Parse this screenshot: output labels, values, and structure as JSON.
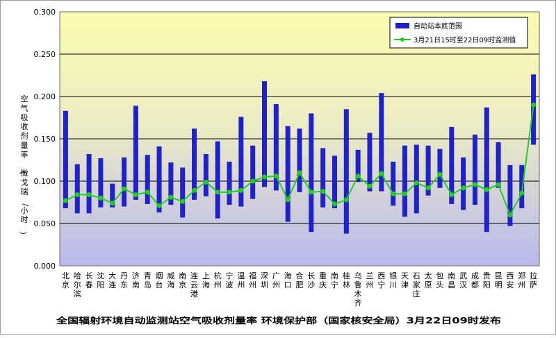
{
  "chart_data": {
    "type": "bar",
    "title": "全国辐射环境自动监测站空气吸收剂量率   环境保护部（国家核安全局）3月22日09时发布",
    "ylabel": "空气吸收剂量率（微戈瑞/小时）",
    "ylim": [
      0,
      0.3
    ],
    "yticks": [
      "0.000",
      "0.050",
      "0.100",
      "0.150",
      "0.200",
      "0.250",
      "0.300"
    ],
    "ytick_values": [
      0,
      0.05,
      0.1,
      0.15,
      0.2,
      0.25,
      0.3
    ],
    "grid": true,
    "legend_position": "top-right",
    "categories": [
      "北京",
      "哈尔滨",
      "长春",
      "沈阳",
      "大连",
      "丹东",
      "济南",
      "青岛",
      "烟台",
      "威海",
      "南京",
      "连云港",
      "上海",
      "杭州",
      "宁波",
      "温州",
      "福州",
      "深圳",
      "广州",
      "海口",
      "合肥",
      "长沙",
      "重庆",
      "南宁",
      "桂林",
      "乌鲁木齐",
      "兰州",
      "西宁",
      "银川",
      "天津",
      "石家庄",
      "太原",
      "包头",
      "南昌",
      "武汉",
      "成都",
      "贵阳",
      "昆明",
      "西安",
      "郑州",
      "拉萨"
    ],
    "series": [
      {
        "name": "自动站本底范围",
        "kind": "range-bar",
        "color": "#2020cc",
        "low": [
          0.068,
          0.062,
          0.062,
          0.069,
          0.069,
          0.07,
          0.078,
          0.073,
          0.063,
          0.072,
          0.057,
          0.078,
          0.082,
          0.056,
          0.072,
          0.07,
          0.079,
          0.093,
          0.089,
          0.052,
          0.087,
          0.04,
          0.069,
          0.068,
          0.038,
          0.099,
          0.088,
          0.088,
          0.071,
          0.058,
          0.062,
          0.083,
          0.092,
          0.073,
          0.066,
          0.072,
          0.04,
          0.092,
          0.047,
          0.068,
          0.143
        ],
        "high": [
          0.183,
          0.12,
          0.132,
          0.127,
          0.097,
          0.128,
          0.189,
          0.131,
          0.141,
          0.122,
          0.116,
          0.162,
          0.132,
          0.147,
          0.123,
          0.176,
          0.142,
          0.218,
          0.191,
          0.165,
          0.162,
          0.18,
          0.139,
          0.13,
          0.185,
          0.137,
          0.157,
          0.204,
          0.123,
          0.142,
          0.143,
          0.142,
          0.138,
          0.164,
          0.128,
          0.155,
          0.187,
          0.146,
          0.119,
          0.119,
          0.226
        ]
      },
      {
        "name": "3月21日15时至22日09时监测值",
        "kind": "line",
        "color": "#22cc22",
        "values": [
          0.077,
          0.084,
          0.084,
          0.08,
          0.074,
          0.091,
          0.084,
          0.087,
          0.071,
          0.081,
          0.076,
          0.089,
          0.099,
          0.087,
          0.087,
          0.089,
          0.1,
          0.105,
          0.106,
          0.078,
          0.11,
          0.087,
          0.088,
          0.073,
          0.078,
          0.106,
          0.094,
          0.109,
          0.085,
          0.085,
          0.098,
          0.092,
          0.108,
          0.084,
          0.092,
          0.096,
          0.09,
          0.096,
          0.06,
          0.086,
          0.19
        ]
      }
    ]
  },
  "colors": {
    "bar": "#2020cc",
    "line": "#22cc22",
    "gradient_top": "#fbfbb0",
    "gradient_bottom": "#b8b8ee"
  }
}
